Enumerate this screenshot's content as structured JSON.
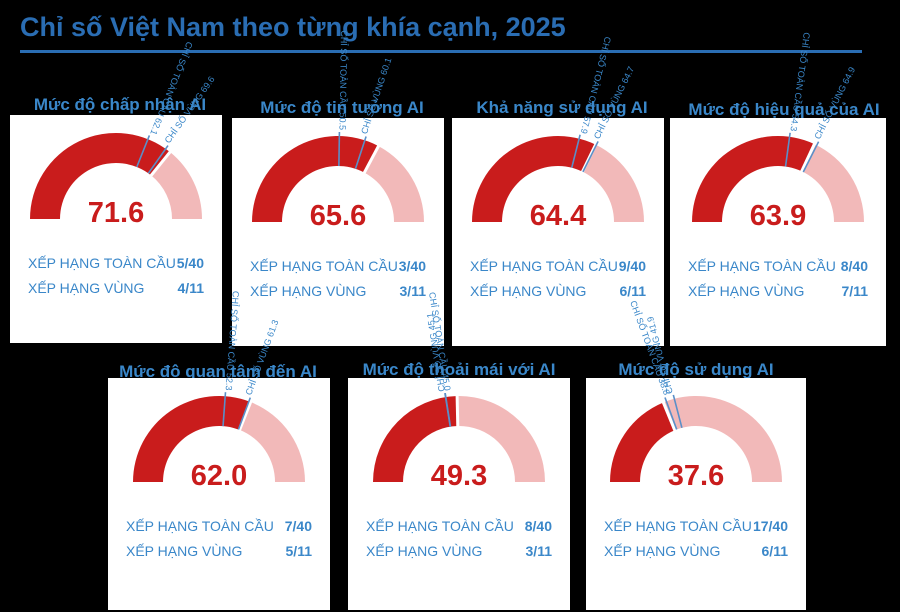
{
  "title": "Chỉ số Việt Nam theo từng khía cạnh, 2025",
  "colors": {
    "score": "#c91c1c",
    "remaining": "#f2b9b9",
    "global_marker": "#5a8fc8",
    "regional_marker": "#5a8fc8",
    "text_blue": "#3a87c9"
  },
  "chart_data": [
    {
      "type": "gauge",
      "title": "Mức độ chấp nhận AI",
      "value": 71.6,
      "range": [
        0,
        100
      ],
      "global_label": "CHỈ SỐ TOÀN CẦU",
      "global": 62.1,
      "regional_label": "CHỈ SỐ VÙNG",
      "regional": 69.6,
      "global_rank_label": "XẾP HẠNG TOÀN CẦU",
      "global_rank": "5/40",
      "regional_rank_label": "XẾP HẠNG VÙNG",
      "regional_rank": "4/11"
    },
    {
      "type": "gauge",
      "title": "Mức độ tin tưởng AI",
      "value": 65.6,
      "range": [
        0,
        100
      ],
      "global_label": "CHỈ SỐ TOÀN CẦU",
      "global": 50.5,
      "regional_label": "CHỈ SỐ VÙNG",
      "regional": 60.1,
      "global_rank_label": "XẾP HẠNG TOÀN CẦU",
      "global_rank": "3/40",
      "regional_rank_label": "XẾP HẠNG VÙNG",
      "regional_rank": "3/11"
    },
    {
      "type": "gauge",
      "title": "Khả năng sử dụng AI",
      "value": 64.4,
      "range": [
        0,
        100
      ],
      "global_label": "CHỈ SỐ TOÀN CẦU",
      "global": 57.9,
      "regional_label": "CHỈ SỐ VÙNG",
      "regional": 64.7,
      "global_rank_label": "XẾP HẠNG TOÀN CẦU",
      "global_rank": "9/40",
      "regional_rank_label": "XẾP HẠNG VÙNG",
      "regional_rank": "6/11"
    },
    {
      "type": "gauge",
      "title": "Mức độ hiệu quả của AI",
      "value": 63.9,
      "range": [
        0,
        100
      ],
      "global_label": "CHỈ SỐ TOÀN CẦU",
      "global": 54.3,
      "regional_label": "CHỈ SỐ VÙNG",
      "regional": 64.9,
      "global_rank_label": "XẾP HẠNG TOÀN CẦU",
      "global_rank": "8/40",
      "regional_rank_label": "XẾP HẠNG VÙNG",
      "regional_rank": "7/11"
    },
    {
      "type": "gauge",
      "title": "Mức độ quan tâm đến AI",
      "value": 62.0,
      "range": [
        0,
        100
      ],
      "global_label": "CHỈ SỐ TOÀN CẦU",
      "global": 52.3,
      "regional_label": "CHỈ SỐ VÙNG",
      "regional": 61.3,
      "global_rank_label": "XẾP HẠNG TOÀN CẦU",
      "global_rank": "7/40",
      "regional_rank_label": "XẾP HẠNG VÙNG",
      "regional_rank": "5/11"
    },
    {
      "type": "gauge",
      "title": "Mức độ thoải mái với AI",
      "value": 49.3,
      "range": [
        0,
        100
      ],
      "global_label": "CHỈ SỐ TOÀN CẦU",
      "global": 45.0,
      "regional_label": "CHỈ SỐ VÙNG",
      "regional": 45.1,
      "global_rank_label": "XẾP HẠNG TOÀN CẦU",
      "global_rank": "8/40",
      "regional_rank_label": "XẾP HẠNG VÙNG",
      "regional_rank": "3/11"
    },
    {
      "type": "gauge",
      "title": "Mức độ sử dụng AI",
      "value": 37.6,
      "range": [
        0,
        100
      ],
      "global_label": "CHỈ SỐ TOÀN CẦU",
      "global": 38.8,
      "regional_label": "CHỈ SỐ VÙNG",
      "regional": 41.9,
      "global_rank_label": "XẾP HẠNG TOÀN CẦU",
      "global_rank": "17/40",
      "regional_rank_label": "XẾP HẠNG VÙNG",
      "regional_rank": "6/11"
    }
  ]
}
